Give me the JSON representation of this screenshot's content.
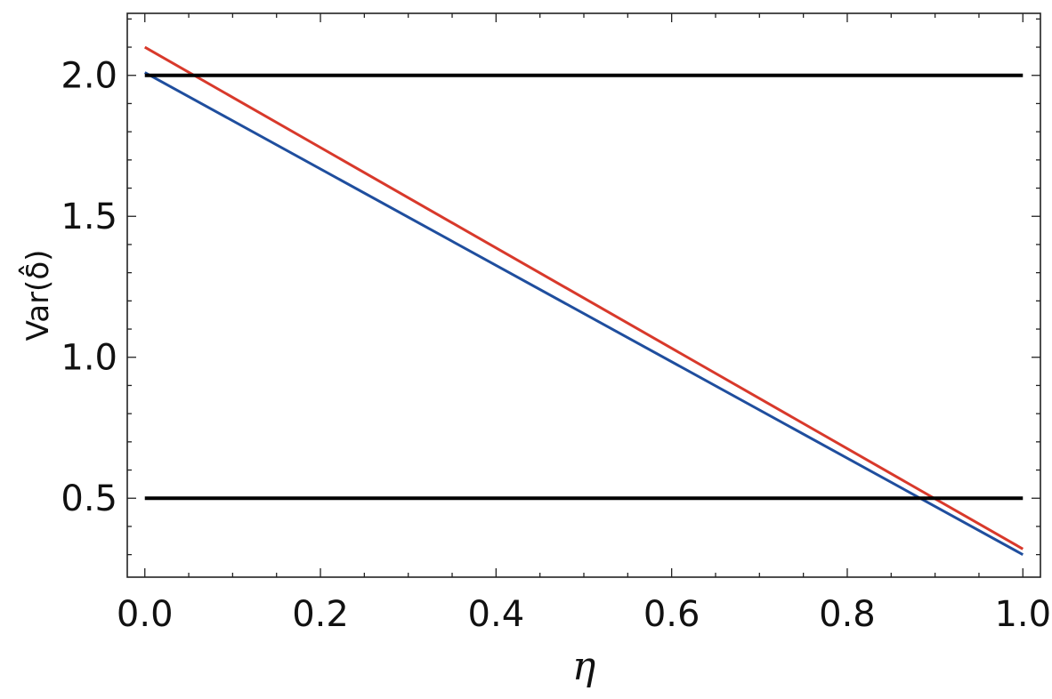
{
  "chart_data": {
    "type": "line",
    "xlabel": "η",
    "ylabel": "Var(δ̂)",
    "xlim": [
      -0.02,
      1.02
    ],
    "ylim": [
      0.22,
      2.22
    ],
    "x_ticks": [
      "0.0",
      "0.2",
      "0.4",
      "0.6",
      "0.8",
      "1.0"
    ],
    "y_ticks": [
      "0.5",
      "1.0",
      "1.5",
      "2.0"
    ],
    "grid": false,
    "series": [
      {
        "color": "#1f4e9e",
        "x": [
          0.0,
          1.0
        ],
        "y": [
          2.01,
          0.3
        ]
      },
      {
        "color": "#d8392b",
        "x": [
          0.0,
          1.0
        ],
        "y": [
          2.1,
          0.32
        ]
      },
      {
        "color": "#000000",
        "x": [
          0.0,
          1.0
        ],
        "y": [
          2.0,
          2.0
        ]
      },
      {
        "color": "#000000",
        "x": [
          0.0,
          1.0
        ],
        "y": [
          0.5,
          0.5
        ]
      }
    ]
  }
}
